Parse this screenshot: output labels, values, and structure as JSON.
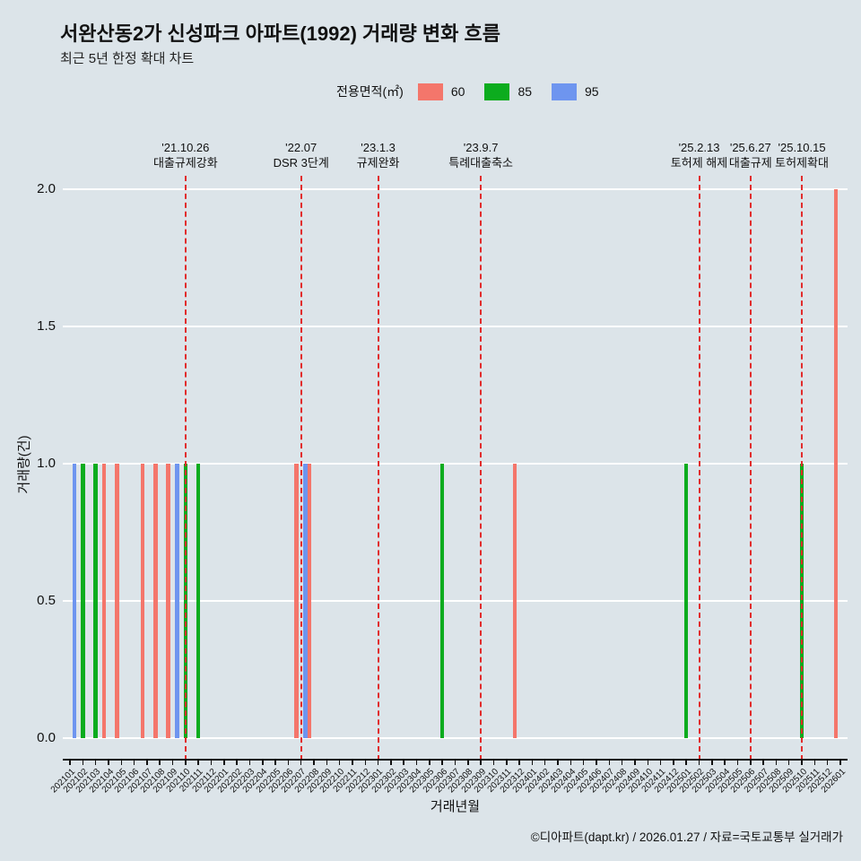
{
  "page": {
    "background": "#dce4e9",
    "footer": "©디아파트(dapt.kr) / 2026.01.27 / 자료=국토교통부 실거래가"
  },
  "chart_data": {
    "type": "bar",
    "title": "서완산동2가 신성파크 아파트(1992) 거래량 변화 흐름",
    "subtitle": "최근 5년 한정 확대 차트",
    "xlabel": "거래년월",
    "ylabel": "거래량(건)",
    "ylim": [
      0,
      2
    ],
    "yticks": [
      0,
      0.5,
      1,
      1.5,
      2
    ],
    "grid": "horizontal-white",
    "annotation_color": "#e12c2c",
    "legend": {
      "title": "전용면적(㎡)",
      "position": "top"
    },
    "categories": [
      "202101",
      "202102",
      "202103",
      "202104",
      "202105",
      "202106",
      "202107",
      "202108",
      "202109",
      "202110",
      "202111",
      "202112",
      "202201",
      "202202",
      "202203",
      "202204",
      "202205",
      "202206",
      "202207",
      "202208",
      "202209",
      "202210",
      "202211",
      "202212",
      "202301",
      "202302",
      "202303",
      "202304",
      "202305",
      "202306",
      "202307",
      "202308",
      "202309",
      "202310",
      "202311",
      "202312",
      "202401",
      "202402",
      "202403",
      "202404",
      "202405",
      "202406",
      "202407",
      "202408",
      "202409",
      "202410",
      "202411",
      "202412",
      "202501",
      "202502",
      "202503",
      "202504",
      "202505",
      "202506",
      "202507",
      "202508",
      "202509",
      "202510",
      "202511",
      "202512",
      "202601"
    ],
    "series": [
      {
        "name": "60",
        "color": "#f4766b",
        "points": [
          {
            "x": "202104",
            "y": 1
          },
          {
            "x": "202105",
            "y": 1
          },
          {
            "x": "202107",
            "y": 1
          },
          {
            "x": "202108",
            "y": 1
          },
          {
            "x": "202109",
            "y": 1
          },
          {
            "x": "202207",
            "y": 1
          },
          {
            "x": "202208",
            "y": 1
          },
          {
            "x": "202312",
            "y": 1
          },
          {
            "x": "202601",
            "y": 2
          }
        ]
      },
      {
        "name": "85",
        "color": "#0cac1e",
        "points": [
          {
            "x": "202102",
            "y": 1
          },
          {
            "x": "202103",
            "y": 1
          },
          {
            "x": "202110",
            "y": 1
          },
          {
            "x": "202111",
            "y": 1
          },
          {
            "x": "202306",
            "y": 1
          },
          {
            "x": "202501",
            "y": 1
          },
          {
            "x": "202510",
            "y": 1
          }
        ]
      },
      {
        "name": "95",
        "color": "#6e95ef",
        "points": [
          {
            "x": "202101",
            "y": 1
          },
          {
            "x": "202109",
            "y": 1
          },
          {
            "x": "202207",
            "y": 1
          }
        ]
      }
    ],
    "annotations": [
      {
        "x": "202110",
        "date": "'21.10.26",
        "label": "대출규제강화"
      },
      {
        "x": "202207",
        "date": "'22.07",
        "label": "DSR 3단계"
      },
      {
        "x": "202301",
        "date": "'23.1.3",
        "label": "규제완화"
      },
      {
        "x": "202309",
        "date": "'23.9.7",
        "label": "특례대출축소"
      },
      {
        "x": "202502",
        "date": "'25.2.13",
        "label": "토허제 해제"
      },
      {
        "x": "202506",
        "date": "'25.6.27",
        "label": "대출규제"
      },
      {
        "x": "202510",
        "date": "'25.10.15",
        "label": "토허제확대"
      }
    ]
  }
}
